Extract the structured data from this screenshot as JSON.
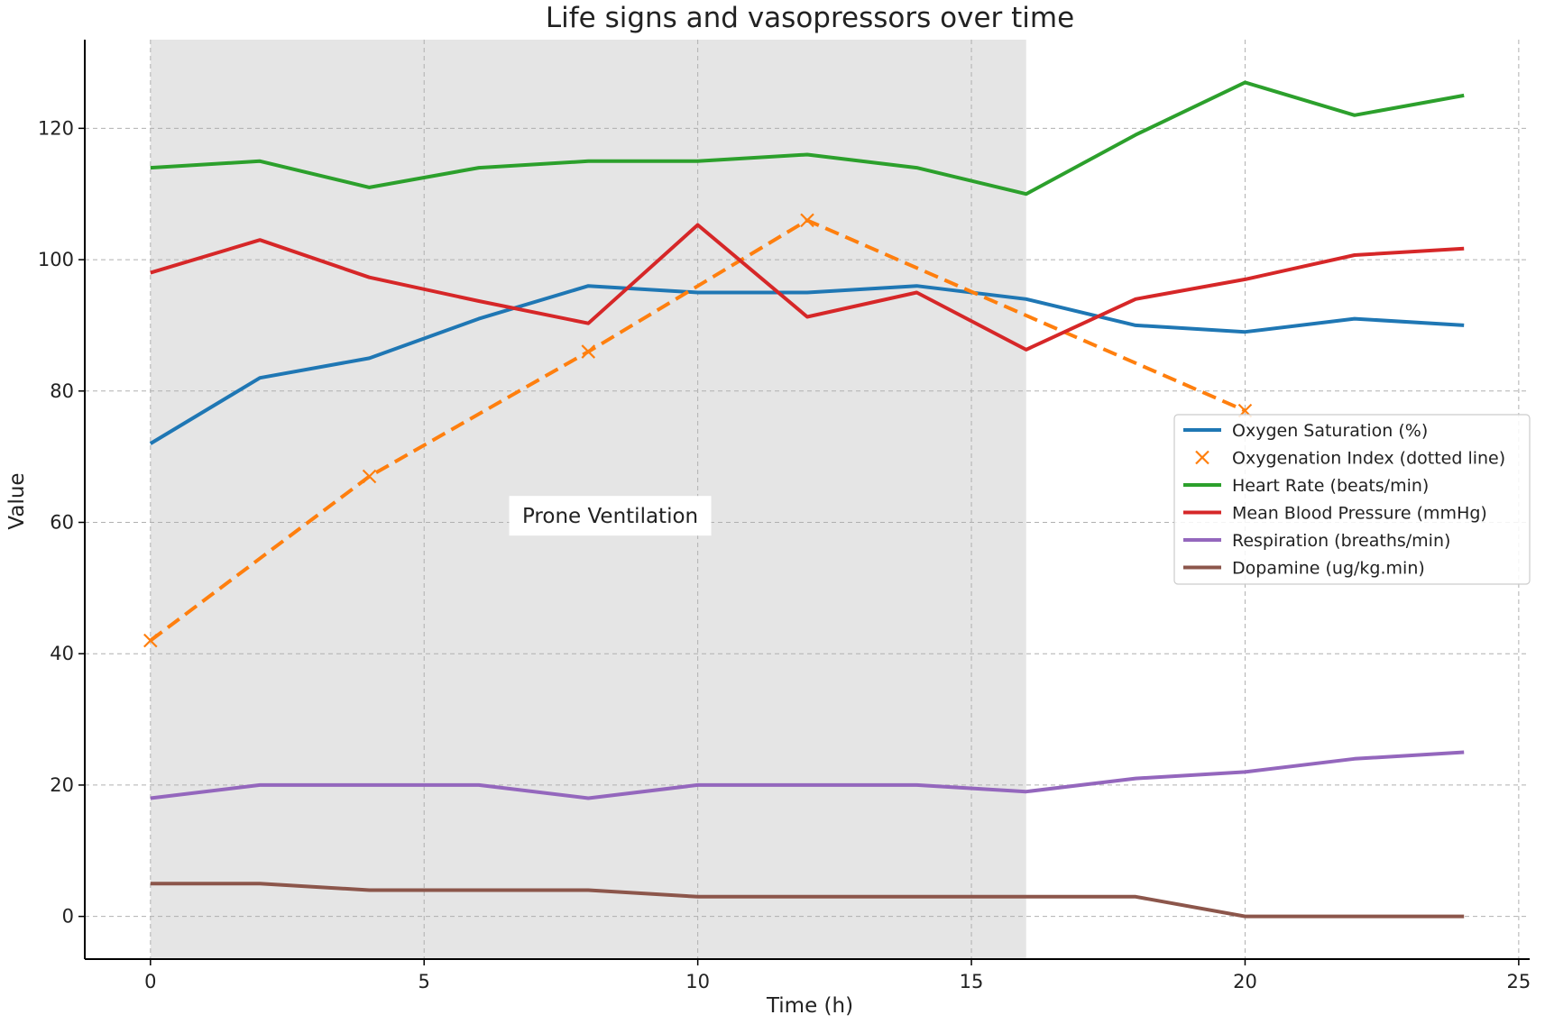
{
  "chart_data": {
    "type": "line",
    "title": "Life signs and vasopressors over time",
    "xlabel": "Time (h)",
    "ylabel": "Value",
    "xlim": [
      -1.2,
      25.2
    ],
    "ylim": [
      -6.5,
      133.5
    ],
    "xticks": [
      0,
      5,
      10,
      15,
      20,
      25
    ],
    "yticks": [
      0,
      20,
      40,
      60,
      80,
      100,
      120
    ],
    "grid": true,
    "legend_position": "center-right",
    "shaded_region": {
      "x_start": 0,
      "x_end": 16,
      "label": "Prone Ventilation",
      "label_x": 8.4,
      "label_y": 61,
      "color": "#e5e5e5"
    },
    "series": [
      {
        "name": "Oxygen Saturation (%)",
        "color": "#1f77b4",
        "style": "solid",
        "x": [
          0,
          2,
          4,
          6,
          8,
          10,
          12,
          14,
          16,
          18,
          20,
          22,
          24
        ],
        "y": [
          72,
          82,
          85,
          91,
          96,
          95,
          95,
          96,
          94,
          90,
          89,
          91,
          90
        ]
      },
      {
        "name": "Oxygenation Index (dotted line)",
        "color": "#ff7f0e",
        "style": "dashed",
        "marker": "x",
        "x": [
          0,
          4,
          8,
          12,
          20
        ],
        "y": [
          42,
          67,
          86,
          106,
          77
        ]
      },
      {
        "name": "Heart Rate (beats/min)",
        "color": "#2ca02c",
        "style": "solid",
        "x": [
          0,
          2,
          4,
          6,
          8,
          10,
          12,
          14,
          16,
          18,
          20,
          22,
          24
        ],
        "y": [
          114,
          115,
          111,
          114,
          115,
          115,
          116,
          114,
          110,
          119,
          127,
          122,
          125
        ]
      },
      {
        "name": "Mean Blood Pressure (mmHg)",
        "color": "#d62728",
        "style": "solid",
        "x": [
          0,
          2,
          4,
          6,
          8,
          10,
          12,
          14,
          16,
          18,
          20,
          22,
          24
        ],
        "y": [
          98,
          103,
          97.3,
          93.7,
          90.3,
          105.3,
          91.3,
          95,
          86.3,
          94,
          97,
          100.7,
          101.7
        ]
      },
      {
        "name": "Respiration (breaths/min)",
        "color": "#9467bd",
        "style": "solid",
        "x": [
          0,
          2,
          4,
          6,
          8,
          10,
          12,
          14,
          16,
          18,
          20,
          22,
          24
        ],
        "y": [
          18,
          20,
          20,
          20,
          18,
          20,
          20,
          20,
          19,
          21,
          22,
          24,
          25
        ]
      },
      {
        "name": "Dopamine (ug/kg.min)",
        "color": "#8c564b",
        "style": "solid",
        "x": [
          0,
          2,
          4,
          6,
          8,
          10,
          12,
          14,
          16,
          18,
          20,
          22,
          24
        ],
        "y": [
          5,
          5,
          4,
          4,
          4,
          3,
          3,
          3,
          3,
          3,
          0,
          0,
          0
        ]
      }
    ]
  }
}
